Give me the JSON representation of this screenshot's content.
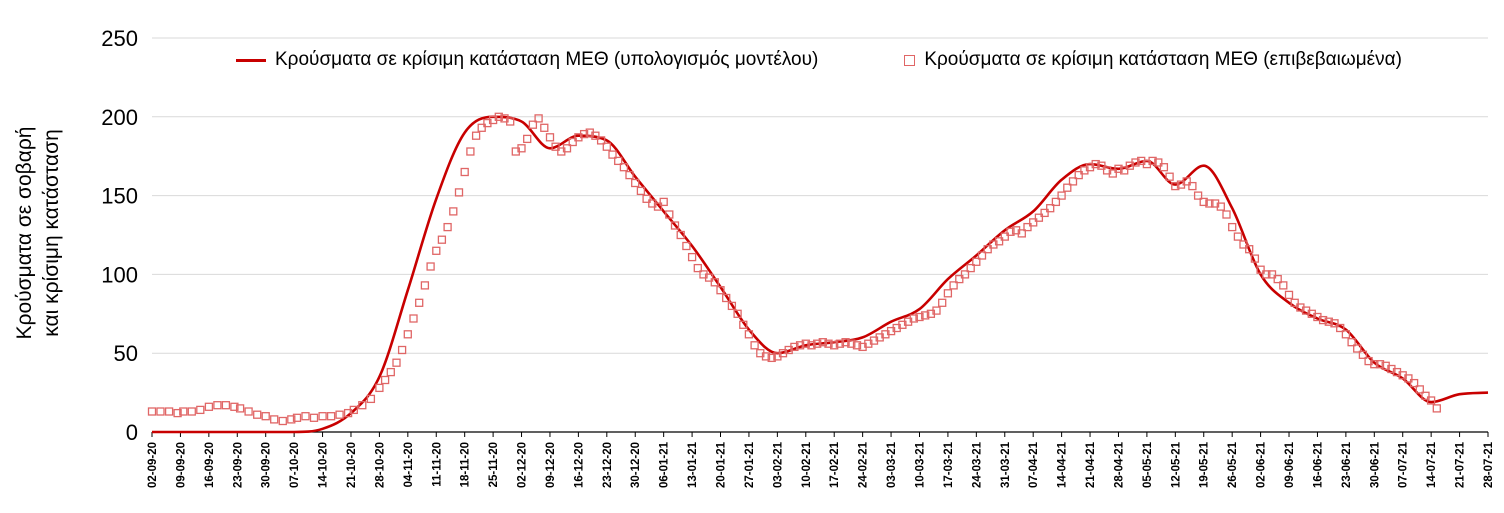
{
  "chart_data": {
    "type": "line",
    "title": "",
    "xlabel": "",
    "ylabel": "Κρούσματα σε σοβαρή και κρίσιμη κατάσταση",
    "ylabel_lines": [
      "Κρούσματα σε σοβαρή",
      "και κρίσιμη κατάσταση"
    ],
    "ylim": [
      0,
      250
    ],
    "yticks": [
      0,
      50,
      100,
      150,
      200,
      250
    ],
    "grid": "horizontal",
    "legend_position": "top",
    "categories": [
      "02-09-20",
      "09-09-20",
      "16-09-20",
      "23-09-20",
      "30-09-20",
      "07-10-20",
      "14-10-20",
      "21-10-20",
      "28-10-20",
      "04-11-20",
      "11-11-20",
      "18-11-20",
      "25-11-20",
      "02-12-20",
      "09-12-20",
      "16-12-20",
      "23-12-20",
      "30-12-20",
      "06-01-21",
      "13-01-21",
      "20-01-21",
      "27-01-21",
      "03-02-21",
      "10-02-21",
      "17-02-21",
      "24-02-21",
      "03-03-21",
      "10-03-21",
      "17-03-21",
      "24-03-21",
      "31-03-21",
      "07-04-21",
      "14-04-21",
      "21-04-21",
      "28-04-21",
      "05-05-21",
      "12-05-21",
      "19-05-21",
      "26-05-21",
      "02-06-21",
      "09-06-21",
      "16-06-21",
      "23-06-21",
      "30-06-21",
      "07-07-21",
      "14-07-21",
      "21-07-21",
      "28-07-21"
    ],
    "series": [
      {
        "name": "Κρούσματα σε κρίσιμη κατάσταση ΜΕΘ (υπολογισμός μοντέλου)",
        "type": "line",
        "color": "#c80000",
        "values": [
          0,
          0,
          0,
          0,
          0,
          0,
          2,
          12,
          35,
          90,
          148,
          190,
          200,
          197,
          180,
          188,
          185,
          162,
          140,
          118,
          92,
          65,
          50,
          55,
          57,
          60,
          70,
          78,
          97,
          112,
          128,
          140,
          160,
          170,
          167,
          172,
          157,
          169,
          142,
          100,
          82,
          72,
          65,
          44,
          34,
          19,
          24,
          25
        ]
      },
      {
        "name": "Κρούσματα σε κρίσιμη κατάσταση ΜΕΘ (επιβεβαιωμένα)",
        "type": "scatter",
        "marker": "open-square",
        "color": "#e06666",
        "points": [
          [
            0,
            13
          ],
          [
            0.3,
            13
          ],
          [
            0.6,
            13
          ],
          [
            0.9,
            12
          ],
          [
            1.1,
            13
          ],
          [
            1.4,
            13
          ],
          [
            1.7,
            14
          ],
          [
            2,
            16
          ],
          [
            2.3,
            17
          ],
          [
            2.6,
            17
          ],
          [
            2.9,
            16
          ],
          [
            3.1,
            15
          ],
          [
            3.4,
            13
          ],
          [
            3.7,
            11
          ],
          [
            4,
            10
          ],
          [
            4.3,
            8
          ],
          [
            4.6,
            7
          ],
          [
            4.9,
            8
          ],
          [
            5.1,
            9
          ],
          [
            5.4,
            10
          ],
          [
            5.7,
            9
          ],
          [
            6,
            10
          ],
          [
            6.3,
            10
          ],
          [
            6.6,
            11
          ],
          [
            6.9,
            12
          ],
          [
            7.1,
            14
          ],
          [
            7.4,
            17
          ],
          [
            7.7,
            21
          ],
          [
            8,
            28
          ],
          [
            8.2,
            33
          ],
          [
            8.4,
            38
          ],
          [
            8.6,
            44
          ],
          [
            8.8,
            52
          ],
          [
            9,
            62
          ],
          [
            9.2,
            72
          ],
          [
            9.4,
            82
          ],
          [
            9.6,
            93
          ],
          [
            9.8,
            105
          ],
          [
            10,
            115
          ],
          [
            10.2,
            122
          ],
          [
            10.4,
            130
          ],
          [
            10.6,
            140
          ],
          [
            10.8,
            152
          ],
          [
            11,
            165
          ],
          [
            11.2,
            178
          ],
          [
            11.4,
            188
          ],
          [
            11.6,
            193
          ],
          [
            11.8,
            196
          ],
          [
            12,
            198
          ],
          [
            12.2,
            200
          ],
          [
            12.4,
            199
          ],
          [
            12.6,
            197
          ],
          [
            12.8,
            178
          ],
          [
            13,
            180
          ],
          [
            13.2,
            186
          ],
          [
            13.4,
            195
          ],
          [
            13.6,
            199
          ],
          [
            13.8,
            193
          ],
          [
            14,
            187
          ],
          [
            14.2,
            181
          ],
          [
            14.4,
            178
          ],
          [
            14.6,
            180
          ],
          [
            14.8,
            184
          ],
          [
            15,
            187
          ],
          [
            15.2,
            189
          ],
          [
            15.4,
            190
          ],
          [
            15.6,
            188
          ],
          [
            15.8,
            185
          ],
          [
            16,
            181
          ],
          [
            16.2,
            176
          ],
          [
            16.4,
            172
          ],
          [
            16.6,
            168
          ],
          [
            16.8,
            163
          ],
          [
            17,
            158
          ],
          [
            17.2,
            153
          ],
          [
            17.4,
            148
          ],
          [
            17.6,
            145
          ],
          [
            17.8,
            143
          ],
          [
            18,
            146
          ],
          [
            18.2,
            138
          ],
          [
            18.4,
            131
          ],
          [
            18.6,
            125
          ],
          [
            18.8,
            118
          ],
          [
            19,
            111
          ],
          [
            19.2,
            104
          ],
          [
            19.4,
            100
          ],
          [
            19.6,
            98
          ],
          [
            19.8,
            95
          ],
          [
            20,
            90
          ],
          [
            20.2,
            85
          ],
          [
            20.4,
            80
          ],
          [
            20.6,
            75
          ],
          [
            20.8,
            68
          ],
          [
            21,
            62
          ],
          [
            21.2,
            55
          ],
          [
            21.4,
            50
          ],
          [
            21.6,
            48
          ],
          [
            21.8,
            47
          ],
          [
            22,
            48
          ],
          [
            22.2,
            50
          ],
          [
            22.4,
            52
          ],
          [
            22.6,
            54
          ],
          [
            22.8,
            55
          ],
          [
            23,
            56
          ],
          [
            23.2,
            55
          ],
          [
            23.4,
            56
          ],
          [
            23.6,
            57
          ],
          [
            23.8,
            56
          ],
          [
            24,
            55
          ],
          [
            24.2,
            56
          ],
          [
            24.4,
            57
          ],
          [
            24.6,
            56
          ],
          [
            24.8,
            55
          ],
          [
            25,
            54
          ],
          [
            25.2,
            56
          ],
          [
            25.4,
            58
          ],
          [
            25.6,
            60
          ],
          [
            25.8,
            62
          ],
          [
            26,
            64
          ],
          [
            26.2,
            66
          ],
          [
            26.4,
            68
          ],
          [
            26.6,
            70
          ],
          [
            26.8,
            72
          ],
          [
            27,
            73
          ],
          [
            27.2,
            74
          ],
          [
            27.4,
            75
          ],
          [
            27.6,
            77
          ],
          [
            27.8,
            82
          ],
          [
            28,
            88
          ],
          [
            28.2,
            93
          ],
          [
            28.4,
            97
          ],
          [
            28.6,
            100
          ],
          [
            28.8,
            104
          ],
          [
            29,
            108
          ],
          [
            29.2,
            112
          ],
          [
            29.4,
            116
          ],
          [
            29.6,
            119
          ],
          [
            29.8,
            121
          ],
          [
            30,
            124
          ],
          [
            30.2,
            127
          ],
          [
            30.4,
            128
          ],
          [
            30.6,
            126
          ],
          [
            30.8,
            130
          ],
          [
            31,
            133
          ],
          [
            31.2,
            136
          ],
          [
            31.4,
            139
          ],
          [
            31.6,
            142
          ],
          [
            31.8,
            146
          ],
          [
            32,
            150
          ],
          [
            32.2,
            155
          ],
          [
            32.4,
            159
          ],
          [
            32.6,
            163
          ],
          [
            32.8,
            166
          ],
          [
            33,
            168
          ],
          [
            33.2,
            170
          ],
          [
            33.4,
            169
          ],
          [
            33.6,
            166
          ],
          [
            33.8,
            164
          ],
          [
            34,
            167
          ],
          [
            34.2,
            166
          ],
          [
            34.4,
            169
          ],
          [
            34.6,
            171
          ],
          [
            34.8,
            172
          ],
          [
            35,
            170
          ],
          [
            35.2,
            172
          ],
          [
            35.4,
            171
          ],
          [
            35.6,
            168
          ],
          [
            35.8,
            162
          ],
          [
            36,
            156
          ],
          [
            36.2,
            157
          ],
          [
            36.4,
            159
          ],
          [
            36.6,
            156
          ],
          [
            36.8,
            150
          ],
          [
            37,
            146
          ],
          [
            37.2,
            145
          ],
          [
            37.4,
            145
          ],
          [
            37.6,
            143
          ],
          [
            37.8,
            138
          ],
          [
            38,
            130
          ],
          [
            38.2,
            124
          ],
          [
            38.4,
            119
          ],
          [
            38.6,
            116
          ],
          [
            38.8,
            110
          ],
          [
            39,
            103
          ],
          [
            39.2,
            100
          ],
          [
            39.4,
            100
          ],
          [
            39.6,
            97
          ],
          [
            39.8,
            93
          ],
          [
            40,
            87
          ],
          [
            40.2,
            82
          ],
          [
            40.4,
            79
          ],
          [
            40.6,
            77
          ],
          [
            40.8,
            75
          ],
          [
            41,
            73
          ],
          [
            41.2,
            71
          ],
          [
            41.4,
            70
          ],
          [
            41.6,
            69
          ],
          [
            41.8,
            66
          ],
          [
            42,
            62
          ],
          [
            42.2,
            57
          ],
          [
            42.4,
            53
          ],
          [
            42.6,
            49
          ],
          [
            42.8,
            45
          ],
          [
            43,
            43
          ],
          [
            43.2,
            43
          ],
          [
            43.4,
            42
          ],
          [
            43.6,
            40
          ],
          [
            43.8,
            38
          ],
          [
            44,
            36
          ],
          [
            44.2,
            34
          ],
          [
            44.4,
            31
          ],
          [
            44.6,
            27
          ],
          [
            44.8,
            23
          ],
          [
            45,
            20
          ],
          [
            45.2,
            15
          ]
        ]
      }
    ],
    "colors": {
      "gridline": "#d9d9d9",
      "axis": "#000000",
      "text": "#000000"
    }
  }
}
